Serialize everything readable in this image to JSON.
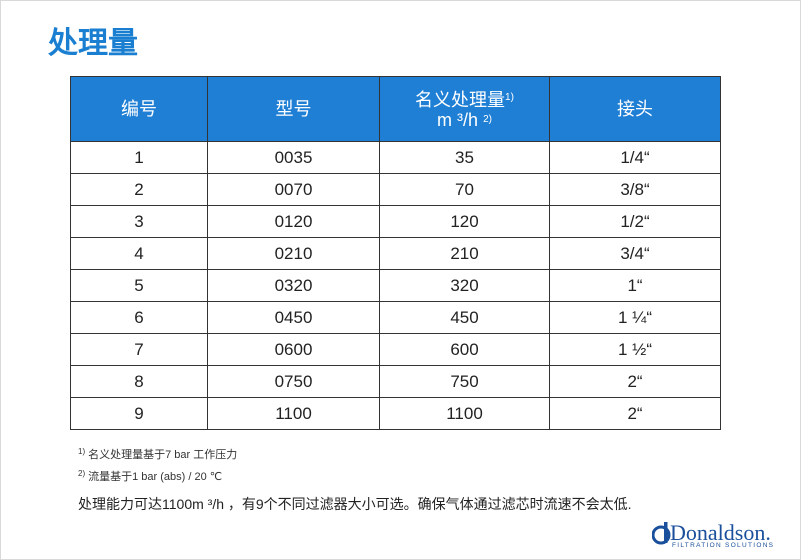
{
  "page": {
    "title": "处理量"
  },
  "table": {
    "headers": {
      "col1": "编号",
      "col2": "型号",
      "col3_line1": "名义处理量",
      "col3_sup1": "1)",
      "col3_line2": "m ³/h",
      "col3_sup2": "2)",
      "col4": "接头"
    },
    "rows": [
      [
        "1",
        "0035",
        "35",
        "1/4“"
      ],
      [
        "2",
        "0070",
        "70",
        "3/8“"
      ],
      [
        "3",
        "0120",
        "120",
        "1/2“"
      ],
      [
        "4",
        "0210",
        "210",
        "3/4“"
      ],
      [
        "5",
        "0320",
        "320",
        "1“"
      ],
      [
        "6",
        "0450",
        "450",
        "1 ¼“"
      ],
      [
        "7",
        "0600",
        "600",
        "1 ½“"
      ],
      [
        "8",
        "0750",
        "750",
        "2“"
      ],
      [
        "9",
        "1100",
        "1100",
        "2“"
      ]
    ]
  },
  "footnotes": {
    "n1_mark": "1)",
    "n1_text": "名义处理量基于7 bar 工作压力",
    "n2_mark": "2)",
    "n2_text": "流量基于1 bar (abs) / 20 ℃"
  },
  "summary": "处理能力可达1100m ³/h ，有9个不同过滤器大小可选。确保气体通过滤芯时流速不会太低.",
  "logo": {
    "name": "Donaldson.",
    "tagline": "FILTRATION SOLUTIONS",
    "color": "#1a4f9c"
  },
  "colors": {
    "title": "#1a7fd1",
    "header_bg": "#1f7fd4"
  }
}
